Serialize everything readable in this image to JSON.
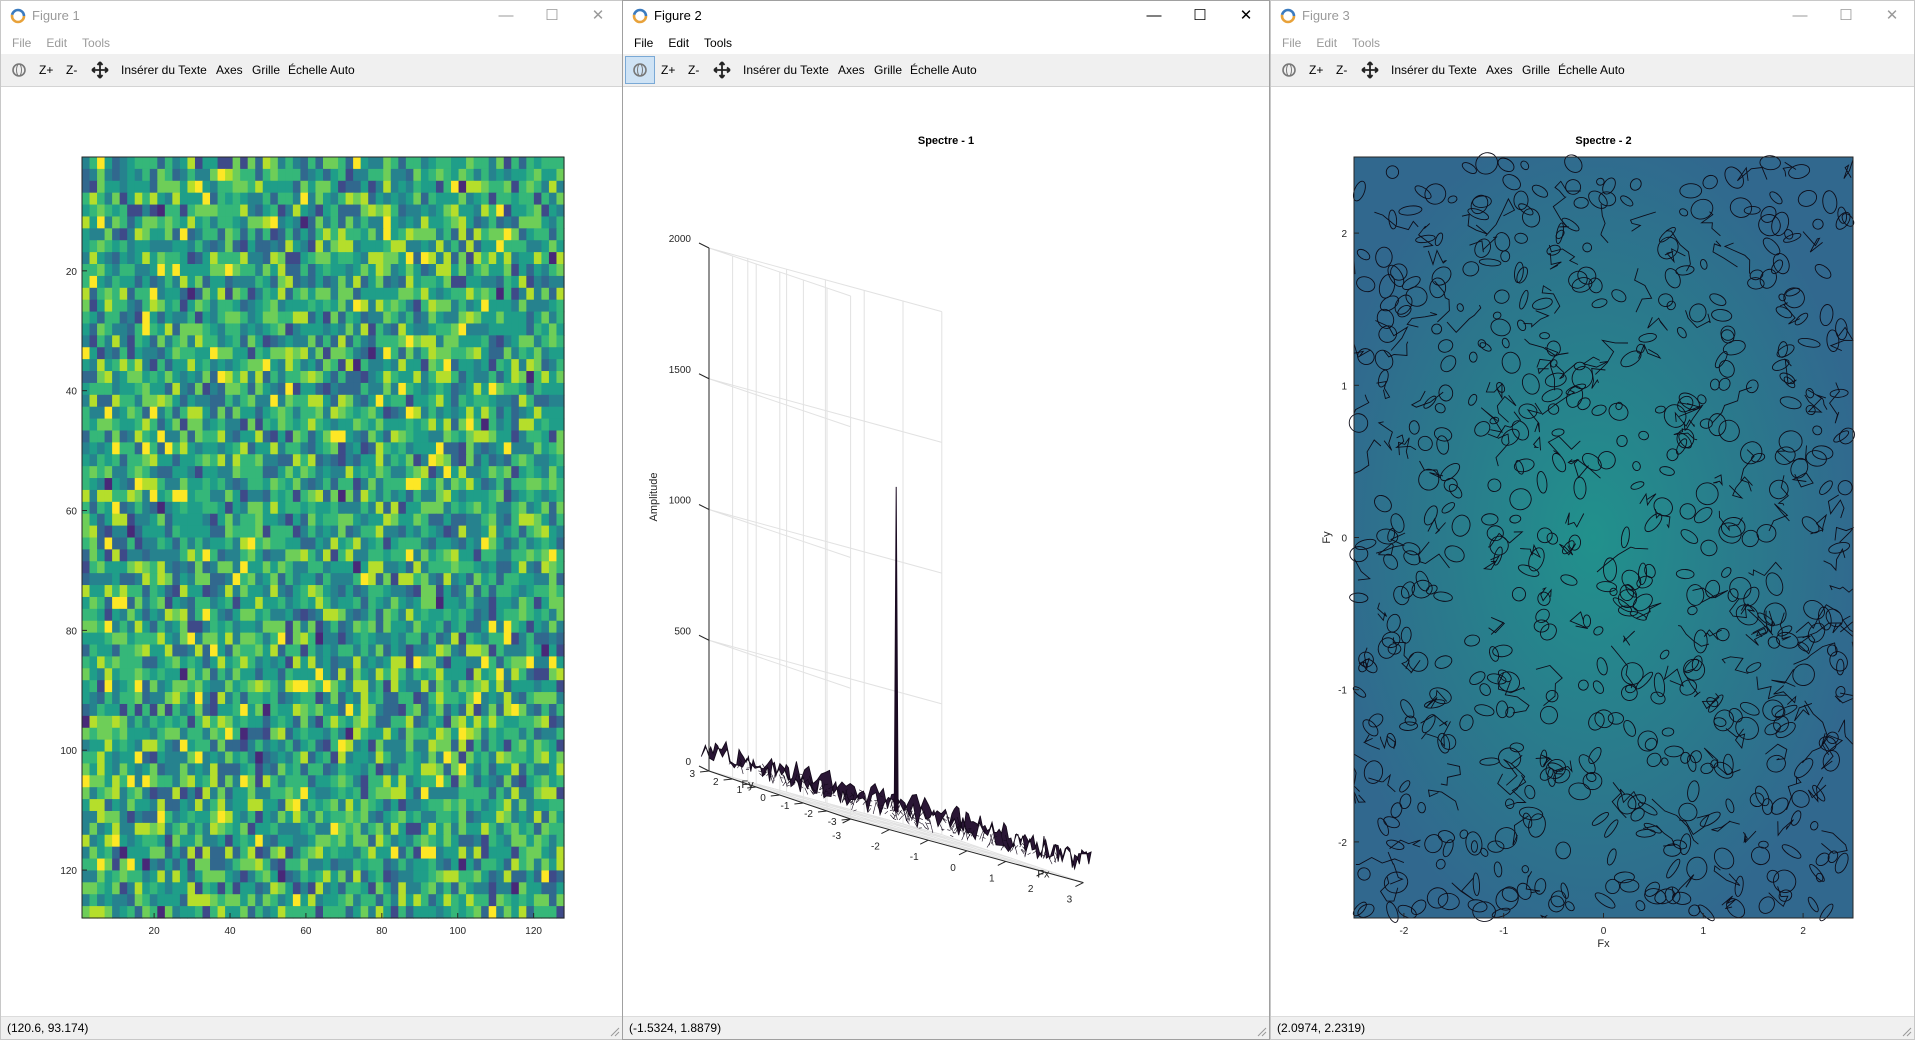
{
  "windows": [
    {
      "title": "Figure 1",
      "active": false,
      "menu": [
        "File",
        "Edit",
        "Tools"
      ],
      "status": "(120.6, 93.174)"
    },
    {
      "title": "Figure 2",
      "active": true,
      "menu": [
        "File",
        "Edit",
        "Tools"
      ],
      "status": "(-1.5324, 1.8879)"
    },
    {
      "title": "Figure 3",
      "active": false,
      "menu": [
        "File",
        "Edit",
        "Tools"
      ],
      "status": "(2.0974, 2.2319)"
    }
  ],
  "toolbar": {
    "zoom_in": "Z+",
    "zoom_out": "Z-",
    "insert_text": "Insérer du Texte",
    "axes": "Axes",
    "grid": "Grille",
    "autoscale": "Échelle Auto"
  },
  "window_controls": {
    "minimize": "—",
    "maximize": "☐",
    "close": "✕"
  },
  "icons": {
    "app": "octave-logo-icon",
    "rotate": "rotate-3d-icon",
    "pan": "pan-arrows-icon"
  },
  "colors": {
    "viridis_dark": "#440154",
    "viridis_blue": "#31688e",
    "viridis_teal": "#21918c",
    "viridis_green": "#35b779",
    "viridis_yellow": "#fde725",
    "surface_dark": "#2a1635"
  },
  "chart_data": [
    {
      "type": "heatmap",
      "title": "",
      "xlabel": "",
      "ylabel": "",
      "x_ticks": [
        20,
        40,
        60,
        80,
        100,
        120
      ],
      "y_ticks": [
        20,
        40,
        60,
        80,
        100,
        120
      ],
      "xlim": [
        1,
        128
      ],
      "ylim": [
        1,
        128
      ],
      "y_reversed": true,
      "colormap": "viridis"
    },
    {
      "type": "surface",
      "title": "Spectre - 1",
      "xlabel": "Fx",
      "ylabel": "Fy",
      "zlabel": "Amplitude",
      "x_ticks": [
        -3,
        -2,
        -1,
        0,
        1,
        2,
        3
      ],
      "y_ticks": [
        -3,
        -2,
        -1,
        0,
        1,
        2,
        3
      ],
      "z_ticks": [
        0,
        500,
        1000,
        1500,
        2000
      ],
      "zlim": [
        0,
        2000
      ],
      "peak": {
        "x": 0,
        "y": 0,
        "z": 1300
      },
      "grid": true
    },
    {
      "type": "contour",
      "title": "Spectre - 2",
      "xlabel": "Fx",
      "ylabel": "Fy",
      "x_ticks": [
        -2,
        -1,
        0,
        1,
        2
      ],
      "y_ticks": [
        -2,
        -1,
        0,
        1,
        2
      ],
      "xlim": [
        -2.5,
        2.5
      ],
      "ylim": [
        -2.5,
        2.5
      ],
      "colormap": "viridis"
    }
  ]
}
